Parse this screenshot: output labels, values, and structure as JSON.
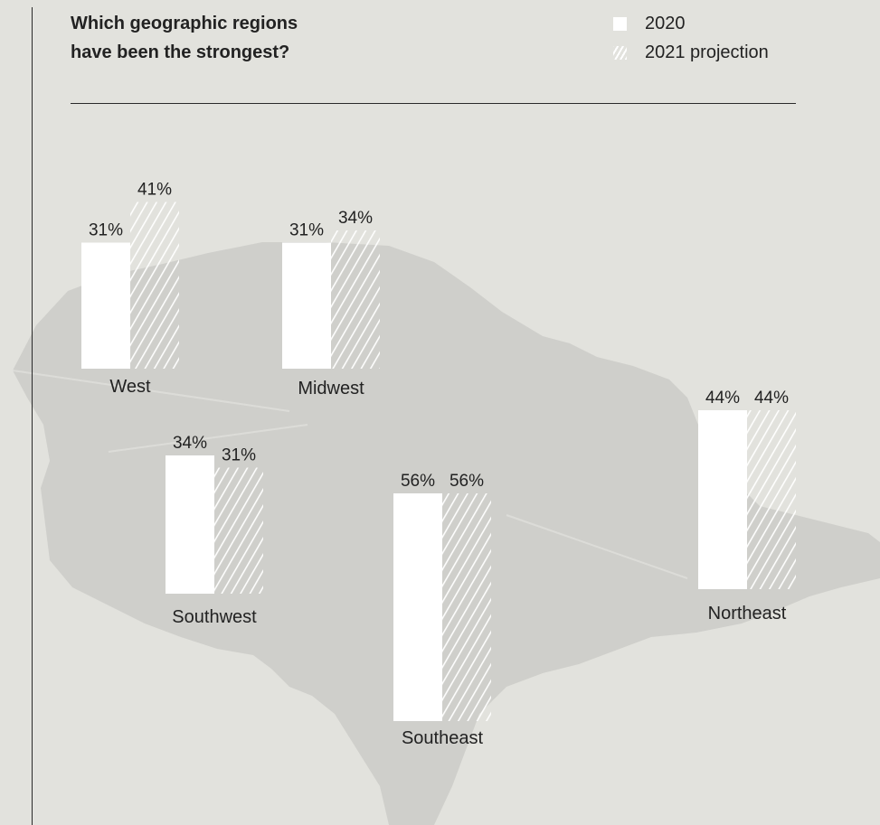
{
  "title": "Which geographic regions\nhave been the strongest?",
  "legend": [
    {
      "label": "2020",
      "style": "solid"
    },
    {
      "label": "2021 projection",
      "style": "hatched"
    }
  ],
  "colors": {
    "background": "#e2e2dd",
    "map": "#cfcfcb",
    "bar_solid": "#ffffff",
    "hatch_stroke": "#ffffff",
    "text": "#222222"
  },
  "chart_data": {
    "type": "bar",
    "title": "Which geographic regions have been the strongest?",
    "series": [
      {
        "name": "2020",
        "style": "solid"
      },
      {
        "name": "2021 projection",
        "style": "hatched"
      }
    ],
    "unit": "%",
    "regions": [
      {
        "name": "West",
        "values": [
          31,
          41
        ],
        "labels": [
          "31%",
          "41%"
        ]
      },
      {
        "name": "Midwest",
        "values": [
          31,
          34
        ],
        "labels": [
          "31%",
          "34%"
        ]
      },
      {
        "name": "Northeast",
        "values": [
          44,
          44
        ],
        "labels": [
          "44%",
          "44%"
        ]
      },
      {
        "name": "Southwest",
        "values": [
          34,
          31
        ],
        "labels": [
          "34%",
          "31%"
        ]
      },
      {
        "name": "Southeast",
        "values": [
          56,
          56
        ],
        "labels": [
          "56%",
          "56%"
        ]
      }
    ]
  }
}
